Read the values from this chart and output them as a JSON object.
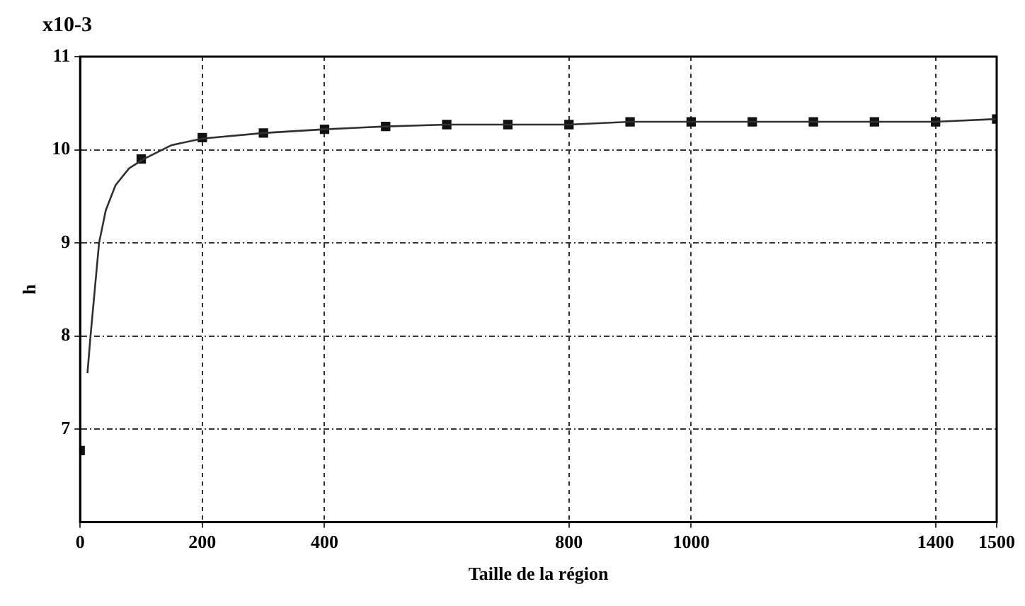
{
  "chart_data": {
    "type": "scatter",
    "xlabel": "Taille de la région",
    "ylabel": "h",
    "annotations": [
      "x10-3"
    ],
    "xlim": [
      0,
      1500
    ],
    "xticks": [
      0,
      200,
      400,
      800,
      1000,
      1400,
      1500
    ],
    "ylim": [
      6,
      11
    ],
    "yticks": [
      7,
      8,
      9,
      10,
      11
    ],
    "grid": true,
    "legend": false,
    "series": [
      {
        "type": "line",
        "color": "#303030",
        "marker": "none",
        "x": [
          12,
          17,
          24,
          31,
          42,
          58,
          80,
          104,
          150,
          200,
          300,
          400,
          500,
          600,
          800,
          900,
          1400,
          1500
        ],
        "values": [
          7.6,
          8,
          8.5,
          9,
          9.35,
          9.62,
          9.8,
          9.9,
          10.05,
          10.12,
          10.18,
          10.22,
          10.25,
          10.27,
          10.27,
          10.3,
          10.3,
          10.33
        ]
      },
      {
        "type": "scatter",
        "color": "#111111",
        "marker": "square",
        "x": [
          0,
          100,
          200,
          300,
          400,
          500,
          600,
          700,
          800,
          900,
          1000,
          1100,
          1200,
          1300,
          1400,
          1500
        ],
        "values": [
          6.77,
          9.9,
          10.13,
          10.18,
          10.22,
          10.25,
          10.27,
          10.27,
          10.27,
          10.3,
          10.3,
          10.3,
          10.3,
          10.3,
          10.3,
          10.33
        ]
      }
    ]
  }
}
